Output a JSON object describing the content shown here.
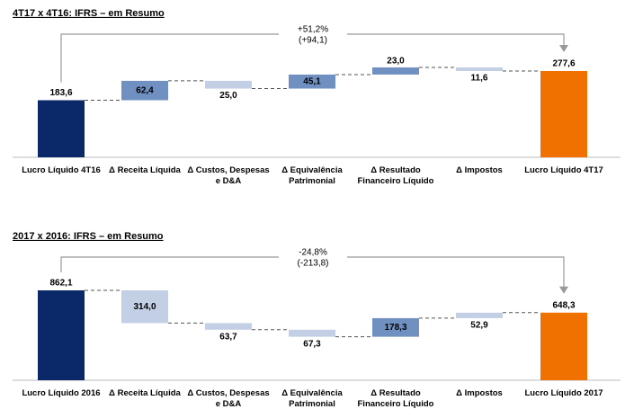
{
  "chart_data": [
    {
      "type": "waterfall",
      "title": "4T17 x 4T16: IFRS – em Resumo",
      "annotation": "+51,2%",
      "annotation_detail": "(+94,1)",
      "categories": [
        "Lucro Líquido 4T16",
        "Δ Receita Líquida",
        "Δ Custos, Despesas e D&A",
        "Δ Equivalência Patrimonial",
        "Δ Resultado Financeiro Líquido",
        "Δ Impostos",
        "Lucro Líquido 4T17"
      ],
      "values": [
        183.6,
        62.4,
        -25.0,
        45.1,
        23.0,
        -11.6,
        277.6
      ],
      "value_labels": [
        "183,6",
        "62,4",
        "25,0",
        "45,1",
        "23,0",
        "11,6",
        "277,6"
      ],
      "colors": [
        "#0b2868",
        "#7090c2",
        "#c3cfe4",
        "#7090c2",
        "#7090c2",
        "#c3cfe4",
        "#f07000"
      ]
    },
    {
      "type": "waterfall",
      "title": "2017 x 2016: IFRS – em Resumo",
      "annotation": "-24,8%",
      "annotation_detail": "(-213,8)",
      "categories": [
        "Lucro Líquido 2016",
        "Δ Receita Líquida",
        "Δ Custos, Despesas e D&A",
        "Δ Equivalência Patrimonial",
        "Δ Resultado Financeiro Líquido",
        "Δ Impostos",
        "Lucro Líquido 2017"
      ],
      "values": [
        862.1,
        -314.0,
        -63.7,
        -67.3,
        178.3,
        52.9,
        648.3
      ],
      "value_labels": [
        "862,1",
        "314,0",
        "63,7",
        "67,3",
        "178,3",
        "52,9",
        "648,3"
      ],
      "colors": [
        "#0b2868",
        "#c3cfe4",
        "#c3cfe4",
        "#c3cfe4",
        "#7090c2",
        "#c3cfe4",
        "#f07000"
      ]
    }
  ]
}
